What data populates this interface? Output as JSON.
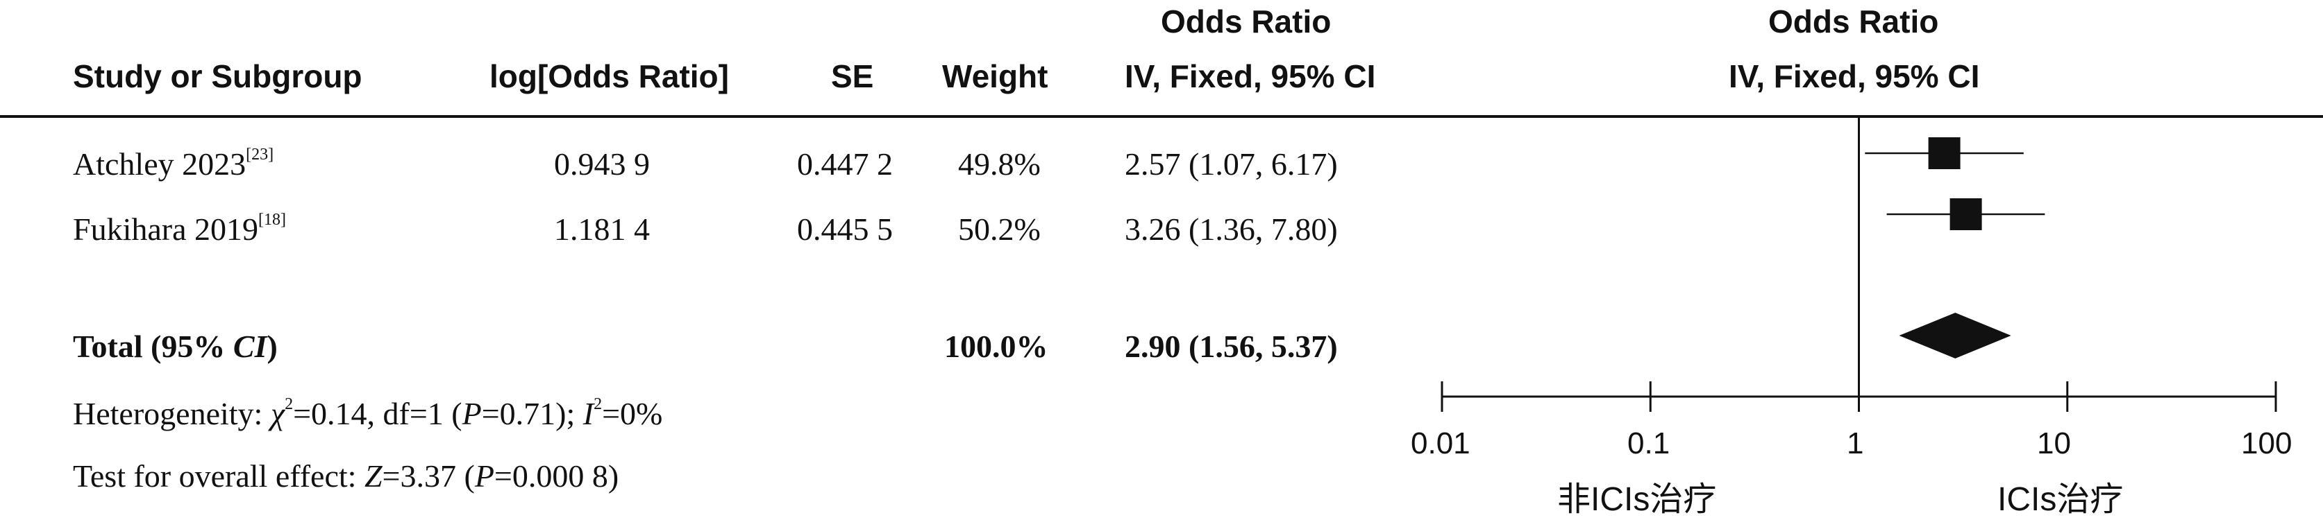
{
  "header": {
    "study": "Study or Subgroup",
    "log_or": "log[Odds Ratio]",
    "se": "SE",
    "weight": "Weight",
    "or_title": "Odds Ratio",
    "or_method": "IV, Fixed, 95% CI",
    "plot_title": "Odds Ratio",
    "plot_method": "IV, Fixed, 95% CI"
  },
  "rows": [
    {
      "study": "Atchley 2023",
      "ref": "[23]",
      "log_or": "0.943 9",
      "se": "0.447 2",
      "weight": "49.8%",
      "ci_text": "2.57 (1.07, 6.17)"
    },
    {
      "study": "Fukihara 2019",
      "ref": "[18]",
      "log_or": "1.181 4",
      "se": "0.445 5",
      "weight": "50.2%",
      "ci_text": "3.26 (1.36, 7.80)"
    }
  ],
  "total": {
    "label_pre": "Total (95% ",
    "label_ci": "CI",
    "label_post": ")",
    "weight": "100.0%",
    "ci_text": "2.90 (1.56, 5.37)"
  },
  "heterogeneity": {
    "pre": "Heterogeneity: ",
    "chi": "χ",
    "chi_sup": "2",
    "mid": "=0.14, df=1 (",
    "p": "P",
    "p_val": "=0.71); ",
    "i": "I",
    "i_sup": "2",
    "i_val": "=0%"
  },
  "overall": {
    "pre": "Test for overall effect: ",
    "z": "Z",
    "z_val": "=3.37 (",
    "p": "P",
    "p_val": "=0.000 8)"
  },
  "axis": {
    "ticks": [
      "0.01",
      "0.1",
      "1",
      "10",
      "100"
    ],
    "left_label": "非ICIs治疗",
    "right_label": "ICIs治疗"
  },
  "chart_data": {
    "type": "forest",
    "scale": "log",
    "xlim": [
      0.01,
      100
    ],
    "null_value": 1,
    "colors": {
      "marks": "#111111"
    },
    "studies": [
      {
        "name": "Atchley 2023",
        "or": 2.57,
        "lower": 1.07,
        "upper": 6.17,
        "weight": 49.8
      },
      {
        "name": "Fukihara 2019",
        "or": 3.26,
        "lower": 1.36,
        "upper": 7.8,
        "weight": 50.2
      }
    ],
    "pooled": {
      "or": 2.9,
      "lower": 1.56,
      "upper": 5.37
    }
  }
}
